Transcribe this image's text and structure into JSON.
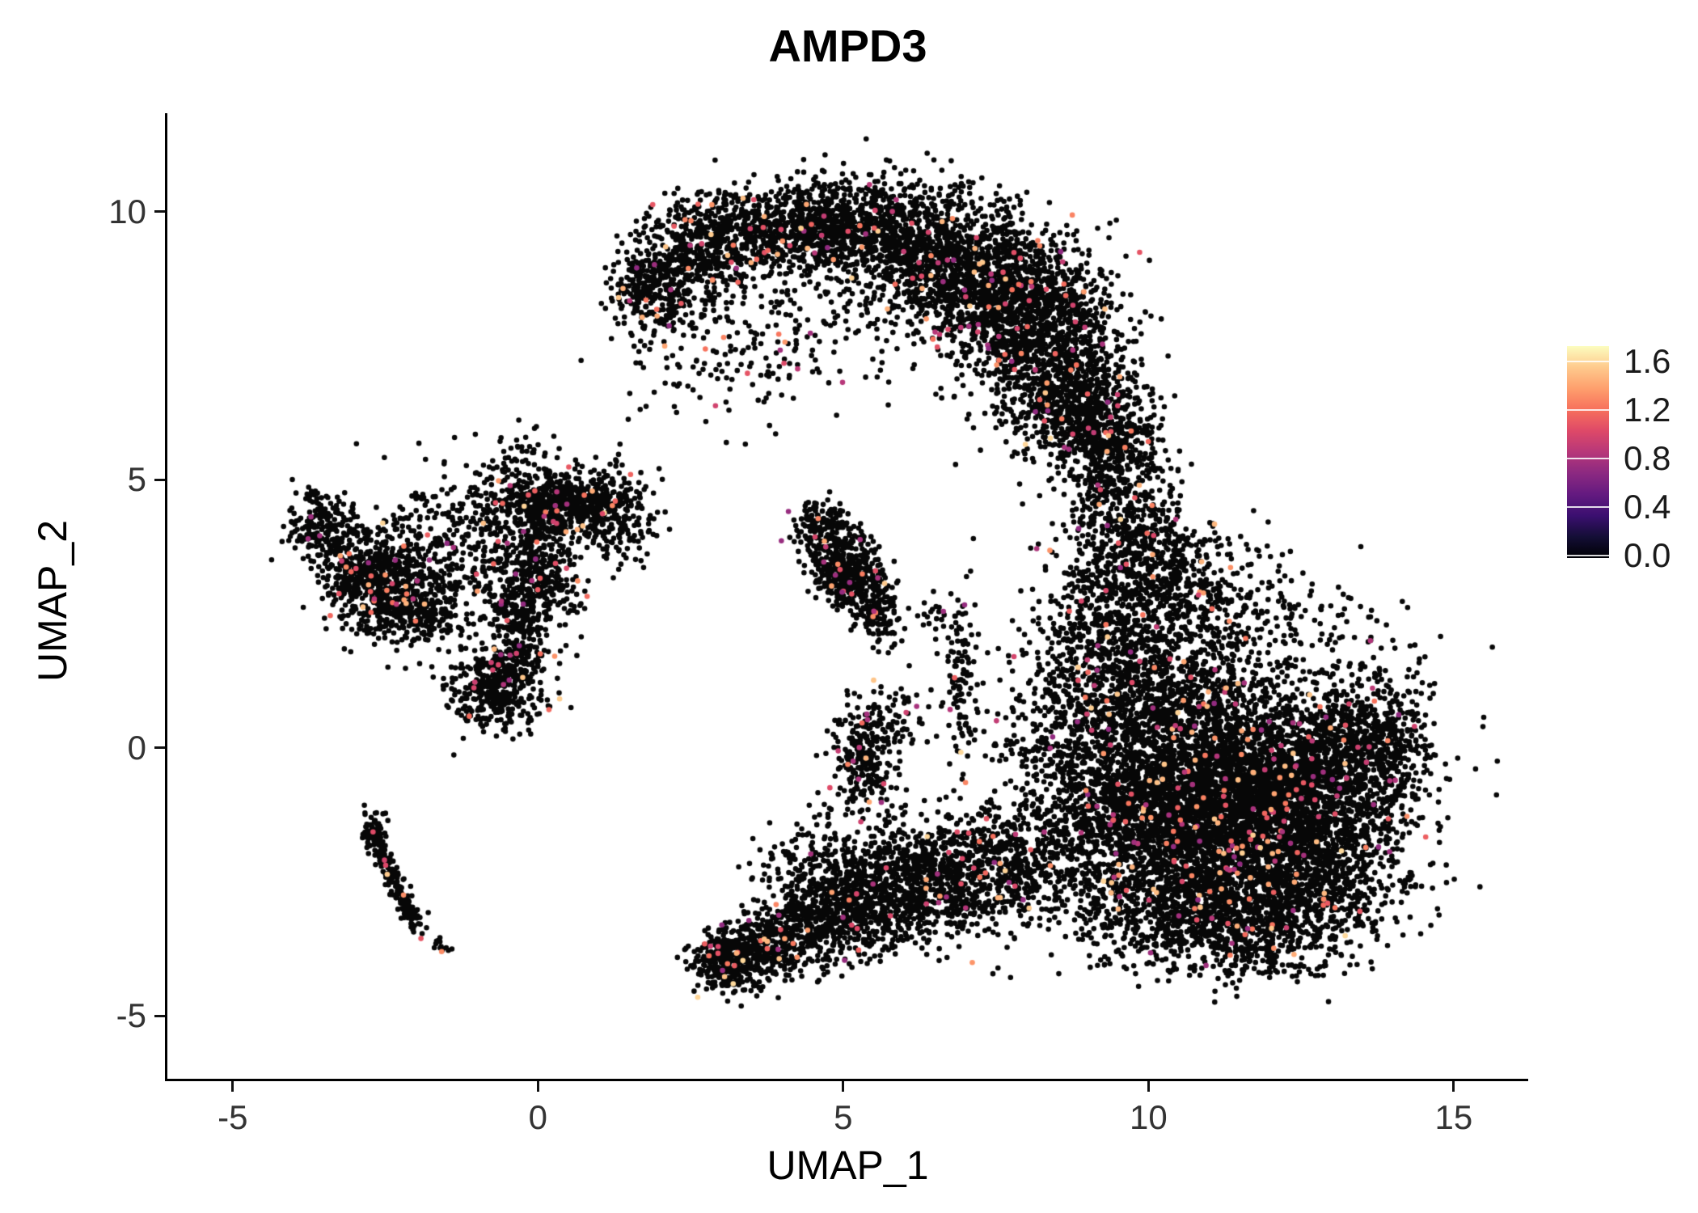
{
  "title": "AMPD3",
  "axes": {
    "x": {
      "label": "UMAP_1",
      "ticks": [
        -5,
        0,
        5,
        10,
        15
      ],
      "range": [
        -6.07,
        16.22
      ]
    },
    "y": {
      "label": "UMAP_2",
      "ticks": [
        -5,
        0,
        5,
        10
      ],
      "range": [
        -6.17,
        11.84
      ]
    }
  },
  "colorbar": {
    "tick_labels": [
      "1.6",
      "1.2",
      "0.8",
      "0.4",
      "0.0"
    ],
    "tick_values": [
      1.6,
      1.2,
      0.8,
      0.4,
      0.0
    ],
    "value_range": [
      -0.02,
      1.727
    ],
    "gradient": [
      "#000004",
      "#140e36",
      "#3b0f70",
      "#641a80",
      "#8c2981",
      "#b73779",
      "#de4968",
      "#f7705c",
      "#fe9f6d",
      "#feca8d",
      "#fcfdbf"
    ]
  },
  "chart_data": {
    "type": "scatter",
    "title": "AMPD3",
    "xlabel": "UMAP_1",
    "ylabel": "UMAP_2",
    "xlim": [
      -6.07,
      16.22
    ],
    "ylim": [
      -6.17,
      11.84
    ],
    "grid": false,
    "legend_position": "right-colorbar",
    "point_radius": 3.3,
    "base_color": "#070707",
    "n_points_approx": 24000,
    "expression": {
      "colored_fraction": 0.03,
      "value_min": 0.7,
      "value_max": 1.6,
      "scale_max": 1.72
    },
    "cluster_fields": [
      "center_x",
      "center_y",
      "sd_x",
      "sd_y",
      "n_points"
    ],
    "clusters": [
      [
        2.0,
        8.7,
        0.35,
        0.55,
        280
      ],
      [
        2.8,
        9.3,
        0.5,
        0.5,
        420
      ],
      [
        4.0,
        9.7,
        0.7,
        0.4,
        520
      ],
      [
        5.3,
        9.75,
        0.8,
        0.45,
        620
      ],
      [
        6.6,
        9.2,
        0.8,
        0.6,
        850
      ],
      [
        7.6,
        8.4,
        0.7,
        0.7,
        950
      ],
      [
        8.4,
        7.4,
        0.6,
        0.8,
        850
      ],
      [
        8.9,
        6.3,
        0.5,
        0.6,
        520
      ],
      [
        9.3,
        5.6,
        0.4,
        0.4,
        240
      ],
      [
        5.2,
        8.3,
        1.3,
        0.8,
        190
      ],
      [
        3.3,
        7.4,
        0.9,
        0.7,
        120
      ],
      [
        1.7,
        8.5,
        0.25,
        0.45,
        110
      ],
      [
        2.3,
        6.8,
        0.5,
        0.4,
        10
      ],
      [
        9.6,
        4.8,
        0.45,
        0.6,
        280
      ],
      [
        9.8,
        3.6,
        0.6,
        0.6,
        400
      ],
      [
        10.8,
        2.9,
        0.9,
        0.7,
        350
      ],
      [
        9.4,
        2.2,
        0.6,
        0.7,
        400
      ],
      [
        10.3,
        1.1,
        0.9,
        0.8,
        750
      ],
      [
        8.9,
        0.2,
        0.7,
        1.0,
        550
      ],
      [
        10.9,
        -0.5,
        1.0,
        0.9,
        1800
      ],
      [
        12.3,
        -1.0,
        1.0,
        0.9,
        1800
      ],
      [
        11.4,
        -2.2,
        1.1,
        0.8,
        1400
      ],
      [
        13.2,
        -0.1,
        0.7,
        0.7,
        650
      ],
      [
        13.9,
        0.3,
        0.35,
        0.45,
        200
      ],
      [
        9.7,
        -1.6,
        0.8,
        0.9,
        850
      ],
      [
        12.6,
        -2.7,
        0.8,
        0.5,
        480
      ],
      [
        10.6,
        -3.2,
        0.9,
        0.5,
        430
      ],
      [
        11.8,
        -3.6,
        0.7,
        0.35,
        230
      ],
      [
        12.8,
        1.8,
        0.9,
        0.6,
        110
      ],
      [
        -3.6,
        4.15,
        0.28,
        0.35,
        160
      ],
      [
        -3.25,
        3.4,
        0.3,
        0.4,
        120
      ],
      [
        -2.55,
        3.15,
        0.42,
        0.5,
        620
      ],
      [
        -1.95,
        2.55,
        0.35,
        0.35,
        210
      ],
      [
        -1.0,
        3.7,
        0.75,
        0.75,
        400
      ],
      [
        0.15,
        4.5,
        0.5,
        0.28,
        430
      ],
      [
        0.9,
        4.55,
        0.35,
        0.3,
        210
      ],
      [
        -0.35,
        2.3,
        0.25,
        0.65,
        300
      ],
      [
        0.1,
        3.3,
        0.3,
        0.55,
        260
      ],
      [
        -0.7,
        1.15,
        0.38,
        0.42,
        400
      ],
      [
        -0.2,
        5.3,
        0.35,
        0.35,
        65
      ],
      [
        1.35,
        4.35,
        0.3,
        0.45,
        150
      ],
      [
        -2.72,
        -1.5,
        0.12,
        0.2,
        45
      ],
      [
        4.6,
        4.2,
        0.22,
        0.22,
        100
      ],
      [
        4.9,
        3.7,
        0.28,
        0.3,
        170
      ],
      [
        5.15,
        3.2,
        0.28,
        0.3,
        280
      ],
      [
        5.5,
        2.7,
        0.22,
        0.28,
        100
      ],
      [
        5.7,
        2.25,
        0.18,
        0.25,
        40
      ],
      [
        3.1,
        -4.0,
        0.28,
        0.28,
        280
      ],
      [
        3.6,
        -3.85,
        0.38,
        0.3,
        260
      ],
      [
        4.3,
        -3.4,
        0.5,
        0.4,
        300
      ],
      [
        5.1,
        -3.0,
        0.6,
        0.45,
        400
      ],
      [
        6.0,
        -2.7,
        0.65,
        0.5,
        450
      ],
      [
        6.9,
        -2.35,
        0.65,
        0.5,
        410
      ],
      [
        7.8,
        -2.05,
        0.6,
        0.6,
        360
      ],
      [
        5.6,
        -1.8,
        0.8,
        0.55,
        200
      ],
      [
        4.4,
        -2.3,
        0.5,
        0.45,
        120
      ],
      [
        5.35,
        -0.1,
        0.24,
        0.5,
        250
      ],
      [
        5.95,
        0.45,
        0.3,
        0.35,
        55
      ],
      [
        6.95,
        1.3,
        0.12,
        0.85,
        100
      ],
      [
        6.6,
        2.5,
        0.25,
        0.3,
        28
      ]
    ],
    "streak_fields": [
      "x1",
      "y1",
      "x2",
      "y2",
      "jitter",
      "n_points"
    ],
    "streaks": [
      [
        -2.75,
        -1.45,
        -1.95,
        -3.45,
        0.08,
        200
      ],
      [
        -1.75,
        -3.55,
        -1.5,
        -3.8,
        0.06,
        14
      ]
    ]
  }
}
